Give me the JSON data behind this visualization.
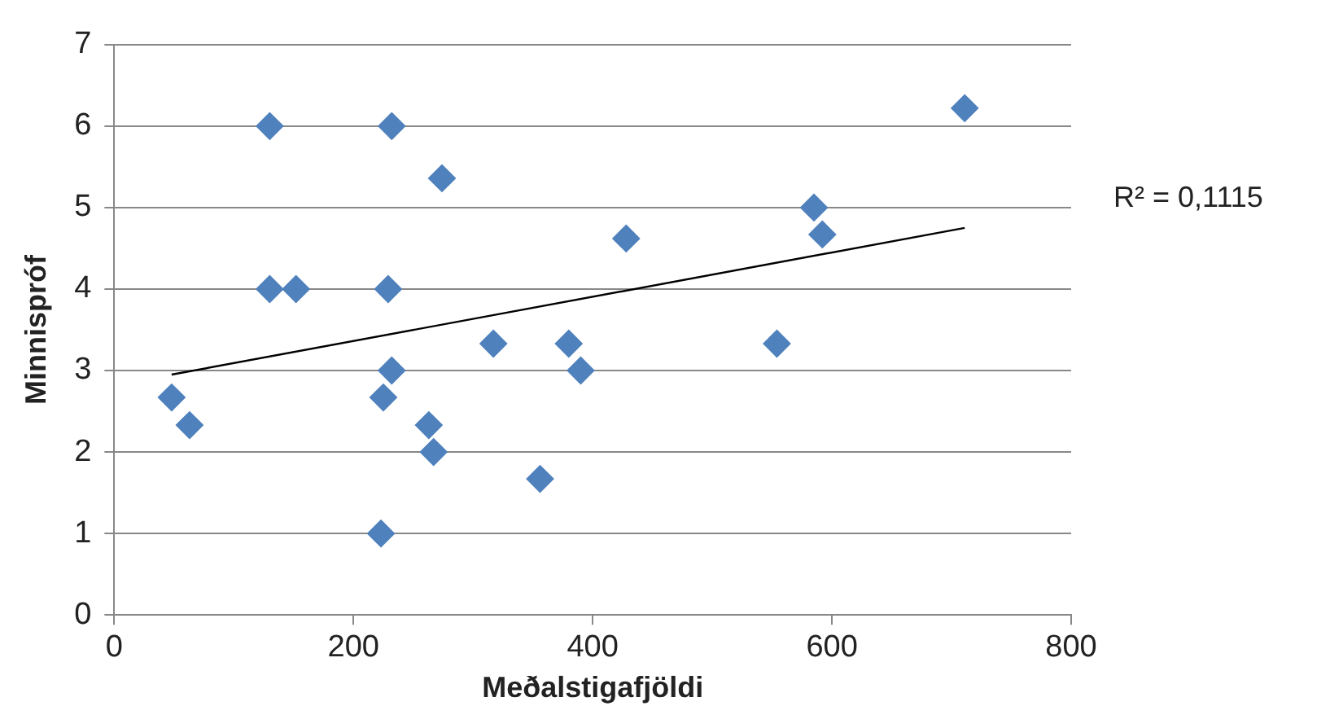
{
  "chart_data": {
    "type": "scatter",
    "xlabel": "Meðalstigafjöldi",
    "ylabel": "Minnispróf",
    "xlim": [
      0,
      800
    ],
    "xticks": [
      0,
      200,
      400,
      600,
      800
    ],
    "ylim": [
      0,
      7
    ],
    "yticks": [
      0,
      1,
      2,
      3,
      4,
      5,
      6,
      7
    ],
    "grid": "y",
    "legend": false,
    "marker": "diamond",
    "series": [
      {
        "color": "#4f81bd",
        "x": [
          48,
          63,
          130,
          130,
          152,
          232,
          229,
          274,
          232,
          225,
          263,
          267,
          223,
          317,
          356,
          380,
          390,
          428,
          585,
          592,
          554,
          711
        ],
        "values": [
          2.67,
          2.33,
          6,
          4,
          4,
          6,
          4,
          5.36,
          3,
          2.67,
          2.33,
          2,
          1,
          3.33,
          1.67,
          3.33,
          3,
          4.62,
          5,
          4.67,
          3.33,
          6.22
        ]
      },
      {
        "type": "line",
        "color": "#000000",
        "marker": "none",
        "x": [
          48,
          711
        ],
        "values": [
          2.95,
          4.75
        ]
      }
    ],
    "annotations": [
      "R² = 0,1115"
    ]
  }
}
